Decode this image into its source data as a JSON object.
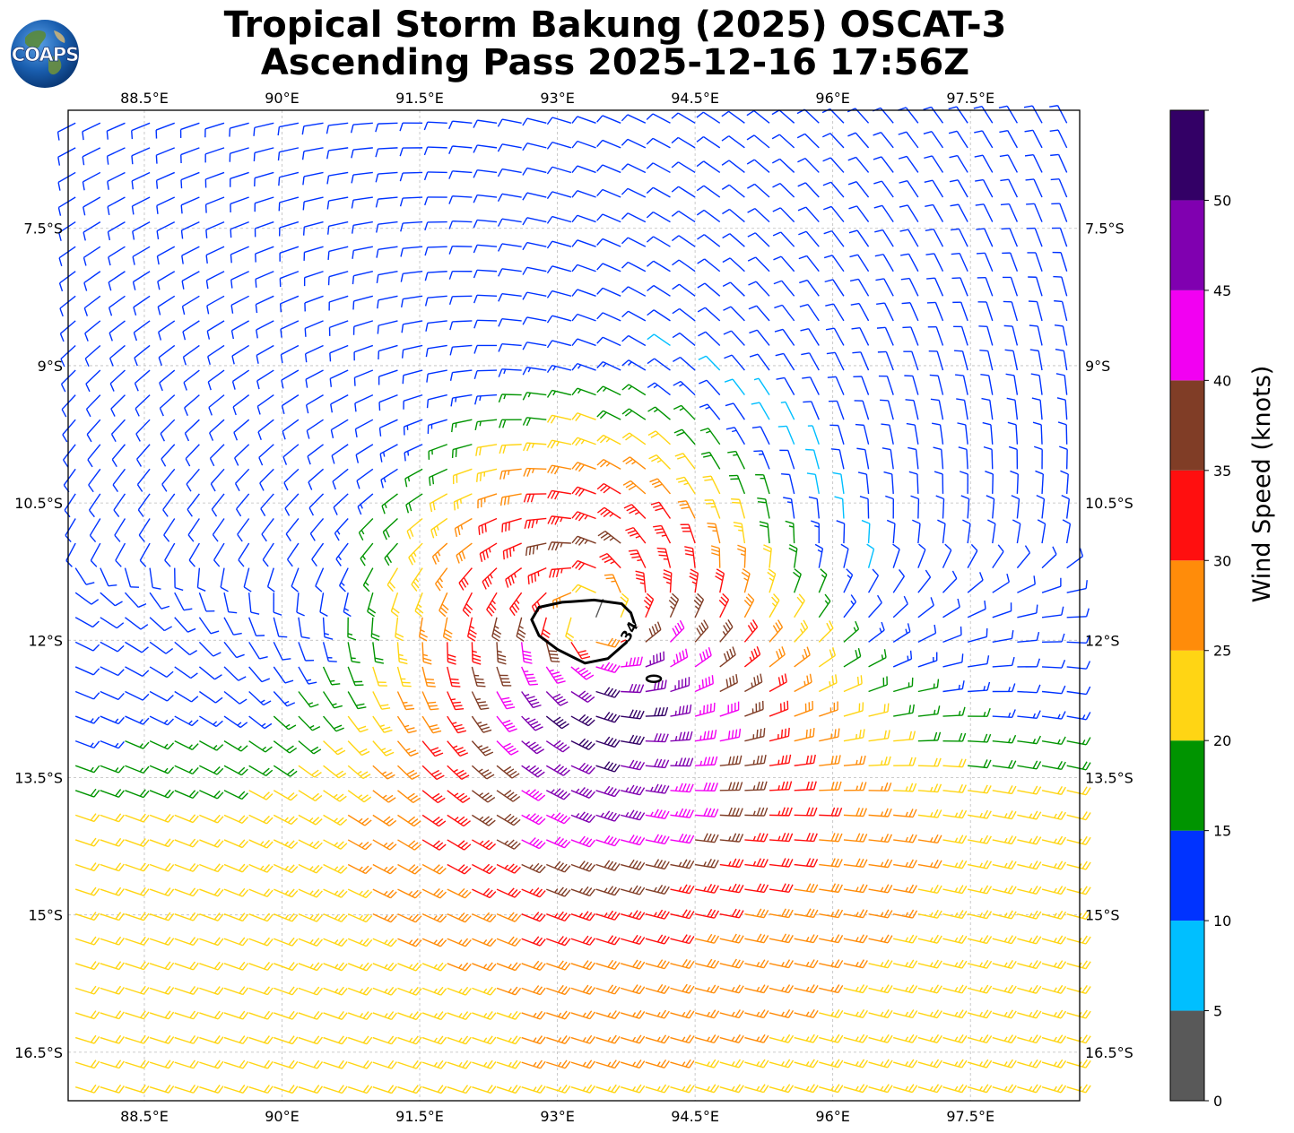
{
  "title": {
    "line1": "Tropical Storm Bakung (2025) OSCAT-3",
    "line2": "Ascending Pass 2025-12-16 17:56Z"
  },
  "logo": {
    "text": "COAPS"
  },
  "map_axes": {
    "lon_labels": [
      "88.5°E",
      "90°E",
      "91.5°E",
      "93°E",
      "94.5°E",
      "96°E",
      "97.5°E"
    ],
    "lon_values": [
      88.5,
      90,
      91.5,
      93,
      94.5,
      96,
      97.5
    ],
    "lat_labels": [
      "7.5°S",
      "9°S",
      "10.5°S",
      "12°S",
      "13.5°S",
      "15°S",
      "16.5°S"
    ],
    "lat_values": [
      -7.5,
      -9,
      -10.5,
      -12,
      -13.5,
      -15,
      -16.5
    ],
    "lon_range": [
      87.67,
      98.69
    ],
    "lat_range": [
      -17.03,
      -6.21
    ],
    "gridlines": true
  },
  "storm": {
    "center_lon": 93.4,
    "center_lat": -11.8,
    "contour_label": "34",
    "contour_value_knots": 34
  },
  "colorbar": {
    "label": "Wind Speed (knots)",
    "tick_labels": [
      "0",
      "5",
      "10",
      "15",
      "20",
      "25",
      "30",
      "35",
      "40",
      "45",
      "50"
    ],
    "bins": [
      {
        "min": 0,
        "max": 5,
        "color": "#595959"
      },
      {
        "min": 5,
        "max": 10,
        "color": "#00bfff"
      },
      {
        "min": 10,
        "max": 15,
        "color": "#0033ff"
      },
      {
        "min": 15,
        "max": 20,
        "color": "#009400"
      },
      {
        "min": 20,
        "max": 25,
        "color": "#ffd514"
      },
      {
        "min": 25,
        "max": 30,
        "color": "#ff8c0a"
      },
      {
        "min": 30,
        "max": 35,
        "color": "#ff0f0f"
      },
      {
        "min": 35,
        "max": 40,
        "color": "#803d26"
      },
      {
        "min": 40,
        "max": 45,
        "color": "#f200f2"
      },
      {
        "min": 45,
        "max": 50,
        "color": "#8000b0"
      },
      {
        "min": 50,
        "max": 55,
        "color": "#330066"
      }
    ]
  }
}
